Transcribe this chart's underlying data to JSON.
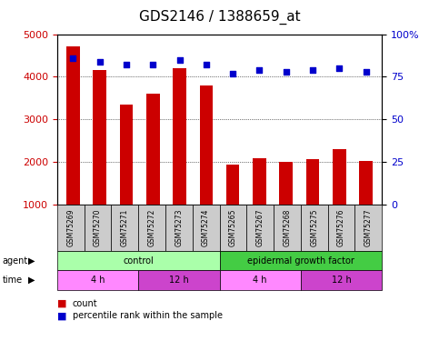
{
  "title": "GDS2146 / 1388659_at",
  "samples": [
    "GSM75269",
    "GSM75270",
    "GSM75271",
    "GSM75272",
    "GSM75273",
    "GSM75274",
    "GSM75265",
    "GSM75267",
    "GSM75268",
    "GSM75275",
    "GSM75276",
    "GSM75277"
  ],
  "counts": [
    4720,
    4150,
    3340,
    3600,
    4190,
    3800,
    1940,
    2090,
    2010,
    2060,
    2310,
    2030
  ],
  "percentiles": [
    86,
    84,
    82,
    82,
    85,
    82,
    77,
    79,
    78,
    79,
    80,
    78
  ],
  "bar_color": "#cc0000",
  "dot_color": "#0000cc",
  "ylim_left": [
    1000,
    5000
  ],
  "ylim_right": [
    0,
    100
  ],
  "yticks_left": [
    1000,
    2000,
    3000,
    4000,
    5000
  ],
  "yticks_right": [
    0,
    25,
    50,
    75,
    100
  ],
  "agent_groups": [
    {
      "label": "control",
      "start": 0,
      "end": 6,
      "color": "#aaffaa"
    },
    {
      "label": "epidermal growth factor",
      "start": 6,
      "end": 12,
      "color": "#44cc44"
    }
  ],
  "time_groups": [
    {
      "label": "4 h",
      "start": 0,
      "end": 3,
      "color": "#ff88ff"
    },
    {
      "label": "12 h",
      "start": 3,
      "end": 6,
      "color": "#cc44cc"
    },
    {
      "label": "4 h",
      "start": 6,
      "end": 9,
      "color": "#ff88ff"
    },
    {
      "label": "12 h",
      "start": 9,
      "end": 12,
      "color": "#cc44cc"
    }
  ],
  "legend_count_color": "#cc0000",
  "legend_dot_color": "#0000cc",
  "sample_box_color": "#cccccc",
  "title_fontsize": 11,
  "tick_fontsize": 8,
  "label_fontsize": 8
}
